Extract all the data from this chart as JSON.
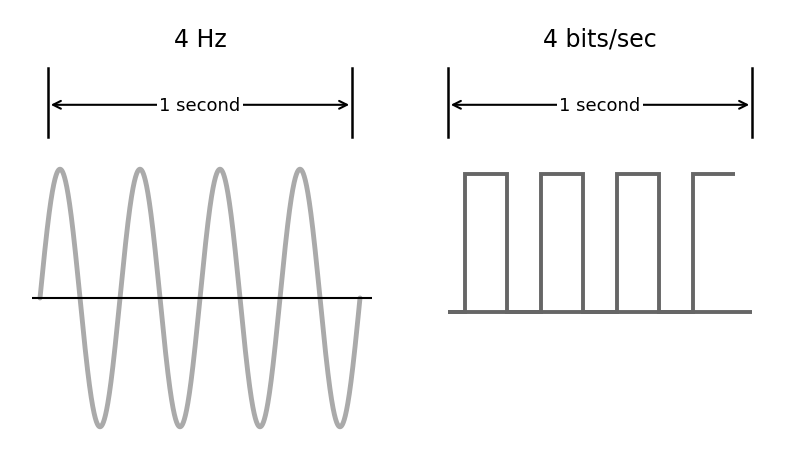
{
  "background_color": "#ffffff",
  "analog_title": "4 Hz",
  "digital_title": "4 bits/sec",
  "arrow_label": "1 second",
  "analog_color": "#aaaaaa",
  "digital_color": "#666666",
  "axis_line_color": "#000000",
  "title_fontsize": 17,
  "label_fontsize": 13,
  "analog_linewidth": 3.5,
  "digital_linewidth": 2.8,
  "baseline_linewidth": 1.5,
  "num_cycles": 4,
  "num_bits": 4,
  "arrow_lw": 1.5,
  "tick_lw": 1.8,
  "mutation_scale": 14
}
